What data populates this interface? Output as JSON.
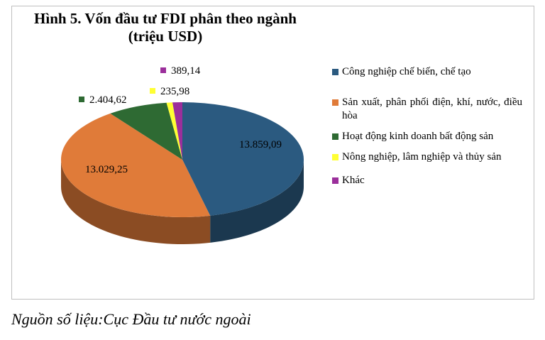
{
  "chart_data": {
    "type": "pie",
    "title": "Hình 5. Vốn đầu tư FDI phân theo ngành",
    "subtitle": "(triệu USD)",
    "series": [
      {
        "name": "Công nghiệp chế biến, chế tạo",
        "value": 13859.09,
        "label": "13.859,09",
        "color": "#2b5a80"
      },
      {
        "name": "Sản xuất, phân phối điện, khí, nước, điều hòa",
        "value": 13029.25,
        "label": "13.029,25",
        "color": "#e07b39"
      },
      {
        "name": "Hoạt động kinh doanh bất động sản",
        "value": 2404.62,
        "label": "2.404,62",
        "color": "#2e6a33"
      },
      {
        "name": "Nông nghiệp, lâm nghiệp và thủy sản",
        "value": 235.98,
        "label": "235,98",
        "color": "#ffff33"
      },
      {
        "name": "Khác",
        "value": 389.14,
        "label": "389,14",
        "color": "#9b2f9b"
      }
    ],
    "legend_position": "right"
  },
  "source_note": "Nguồn số liệu:Cục Đầu tư nước ngoài"
}
